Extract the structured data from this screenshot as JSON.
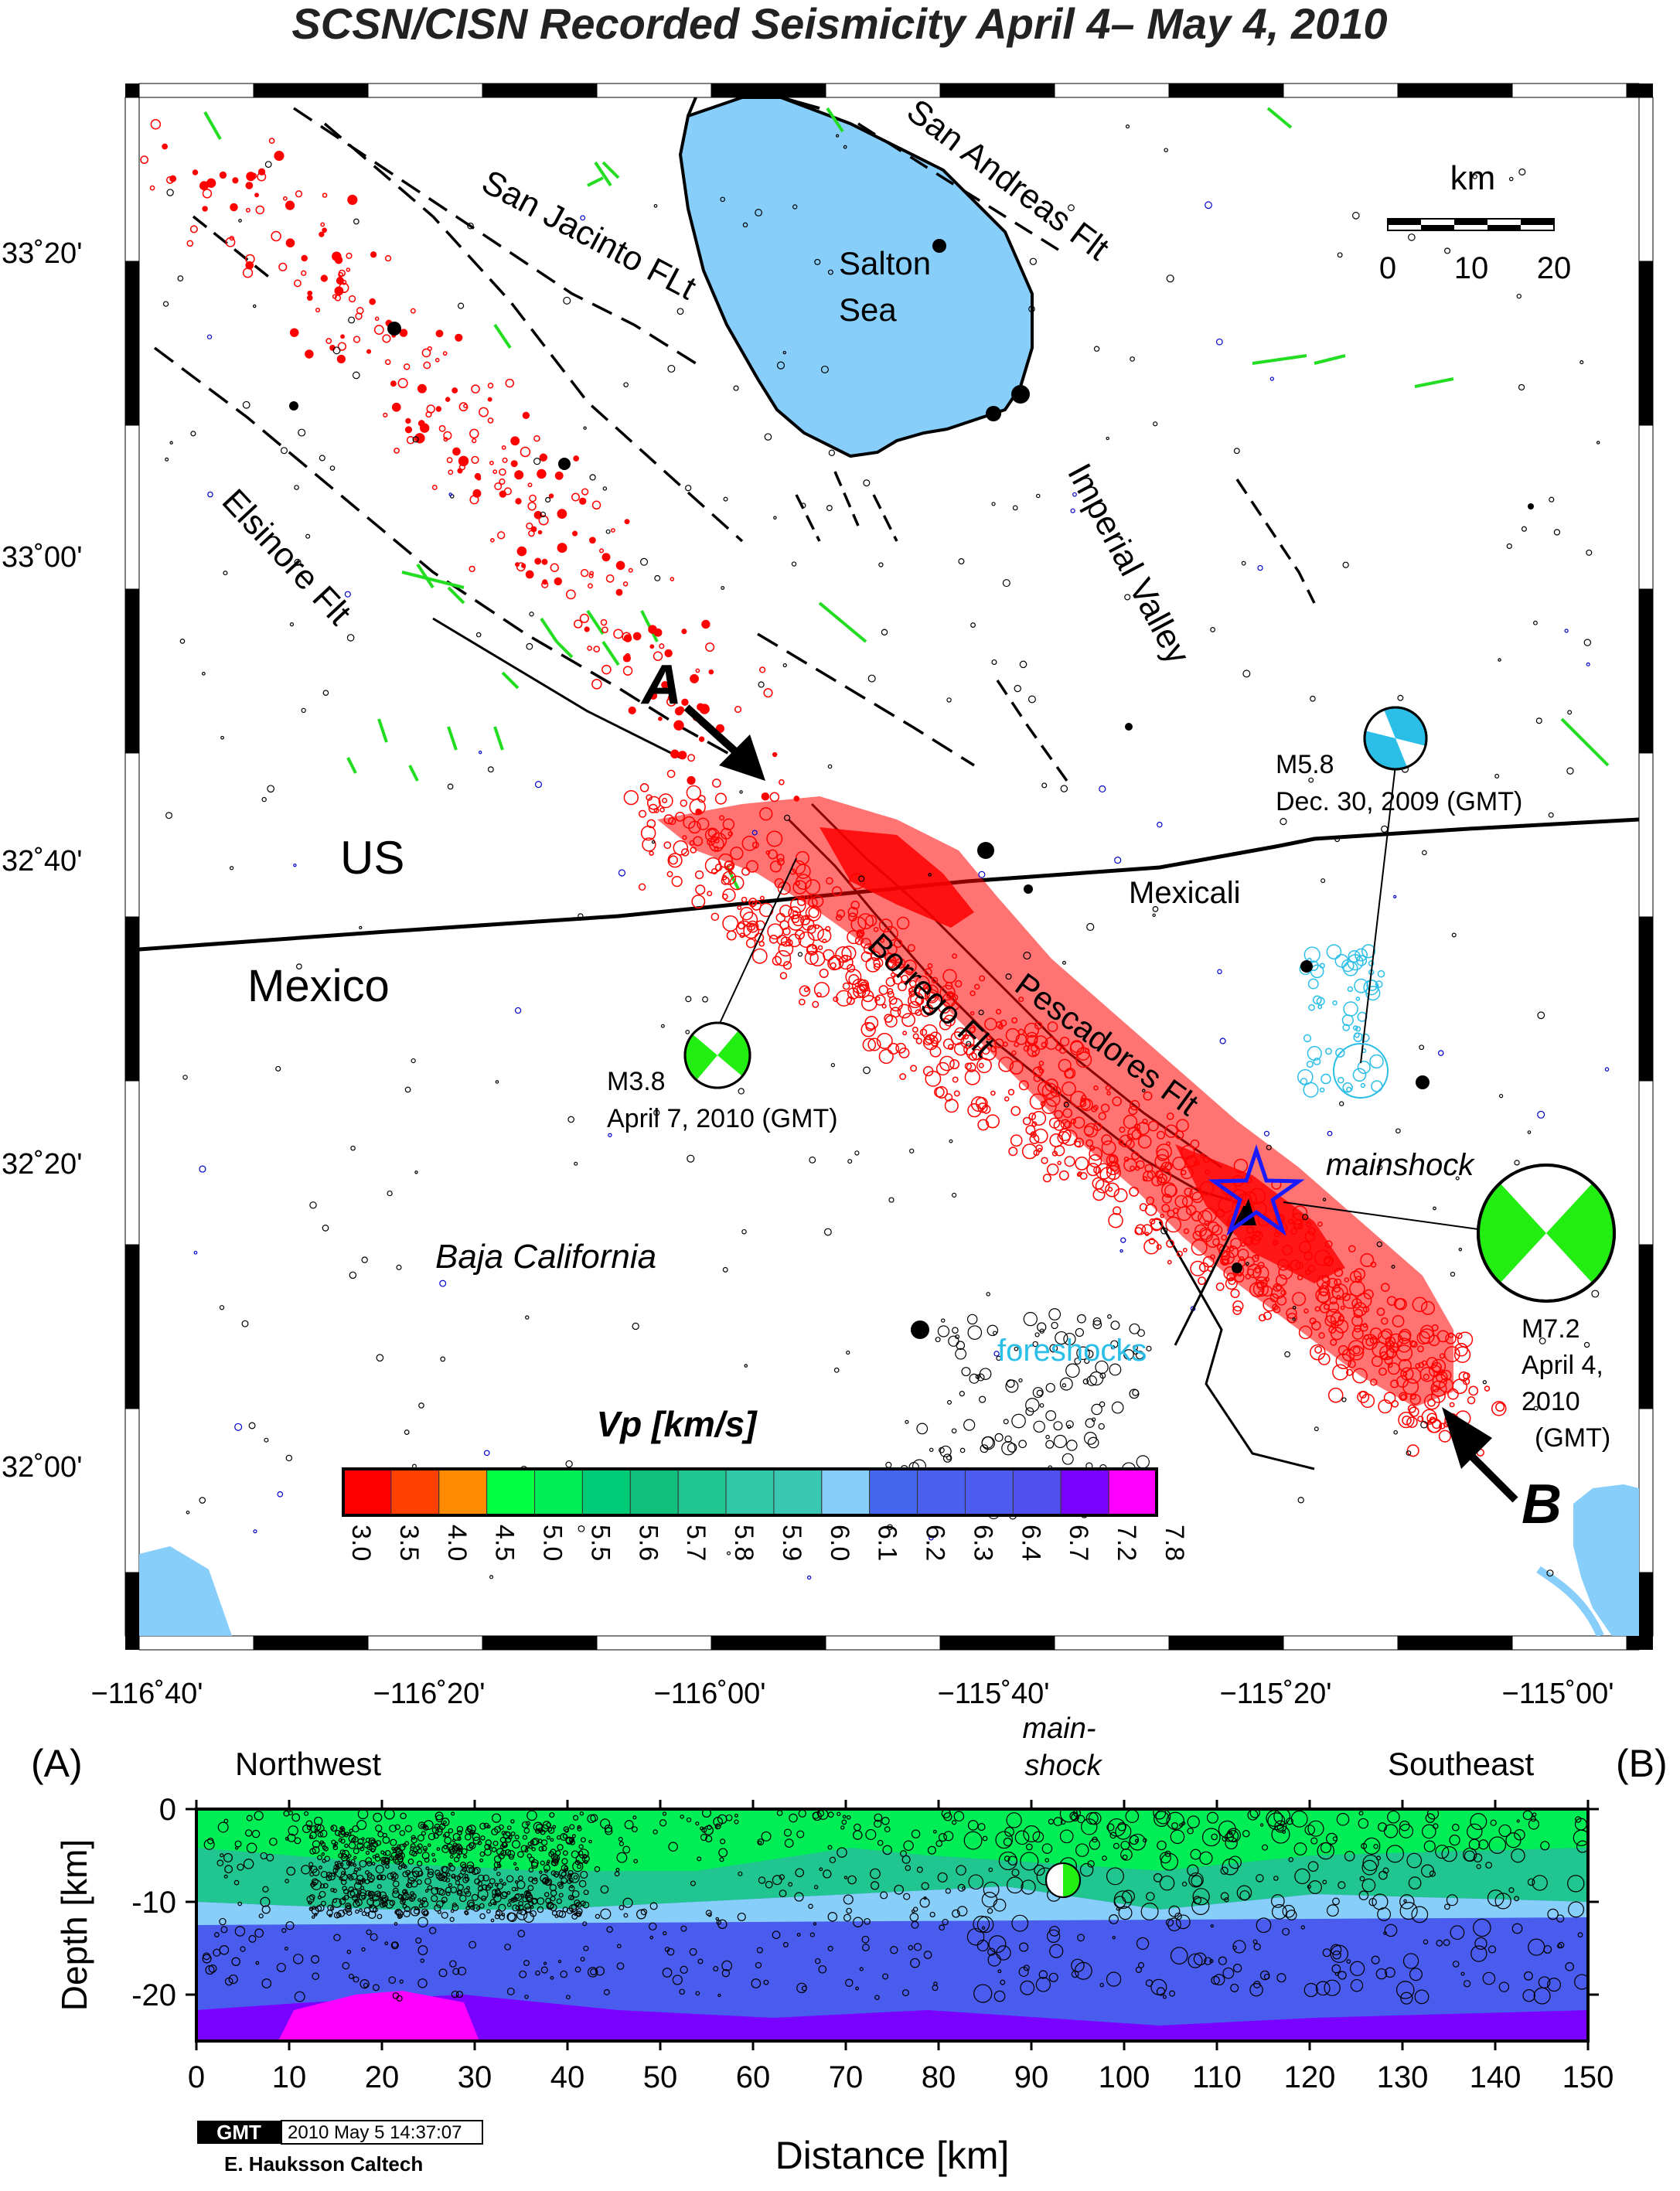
{
  "title": "SCSN/CISN Recorded Seismicity April 4– May 4, 2010",
  "map": {
    "lat_ticks": [
      "33˚20'",
      "33˚00'",
      "32˚40'",
      "32˚20'",
      "32˚00'"
    ],
    "lon_ticks": [
      "−116˚40'",
      "−116˚20'",
      "−116˚00'",
      "−115˚40'",
      "−115˚20'",
      "−115˚00'"
    ],
    "labels": {
      "san_andreas": "San Andreas Flt",
      "san_jacinto": "San Jacinto FLt",
      "salton": "Salton",
      "sea": "Sea",
      "imperial": "Imperial Valley",
      "elsinore": "Elsinore Flt",
      "us": "US",
      "mexico": "Mexico",
      "mexicali": "Mexicali",
      "borrego": "Borrego Flt",
      "pescadores": "Pescadores Flt",
      "baja": "Baja California",
      "mainshock": "mainshock",
      "foreshocks": "foreshocks",
      "a": "A",
      "b": "B"
    },
    "scale": {
      "title": "km",
      "ticks": [
        "0",
        "10",
        "20"
      ]
    },
    "events": {
      "m58": {
        "mag": "M5.8",
        "date": "Dec. 30, 2009 (GMT)"
      },
      "m38": {
        "mag": "M3.8",
        "date": "April 7, 2010 (GMT)"
      },
      "m72": {
        "mag": "M7.2",
        "line1": "April 4,",
        "line2": "2010",
        "line3": "(GMT)"
      }
    },
    "colors": {
      "water": "#87CEFA",
      "faults_green": "#22dd22",
      "seismicity": "#ff0000",
      "m58_color": "#2bbfe8"
    }
  },
  "colorbar": {
    "title": "Vp [km/s]",
    "colors": [
      "#ff0000",
      "#ff4000",
      "#ff8c00",
      "#00ff40",
      "#00ee55",
      "#00cc77",
      "#10c07d",
      "#20c590",
      "#30c8a8",
      "#38c8b4",
      "#87cefa",
      "#4466ee",
      "#4a60ee",
      "#4d5cee",
      "#5050ee",
      "#7a00ff",
      "#ff00ff"
    ],
    "labels": [
      "3.0",
      "3.5",
      "4.0",
      "4.5",
      "5.0",
      "5.5",
      "5.6",
      "5.7",
      "5.8",
      "5.9",
      "6.0",
      "6.1",
      "6.2",
      "6.3",
      "6.4",
      "6.7",
      "7.2",
      "7.8"
    ]
  },
  "section": {
    "left_label": "(A)",
    "right_label": "(B)",
    "northwest": "Northwest",
    "southeast": "Southeast",
    "mainshock_1": "main-",
    "mainshock_2": "shock",
    "ylabel": "Depth [km]",
    "xlabel": "Distance [km]",
    "yticks": [
      "0",
      "-10",
      "-20"
    ],
    "xticks": [
      "0",
      "10",
      "20",
      "30",
      "40",
      "50",
      "60",
      "70",
      "80",
      "90",
      "100",
      "110",
      "120",
      "130",
      "140",
      "150"
    ]
  },
  "footer": {
    "logo": "GMT",
    "timestamp": "2010 May  5 14:37:07",
    "credit": "E. Hauksson Caltech"
  }
}
